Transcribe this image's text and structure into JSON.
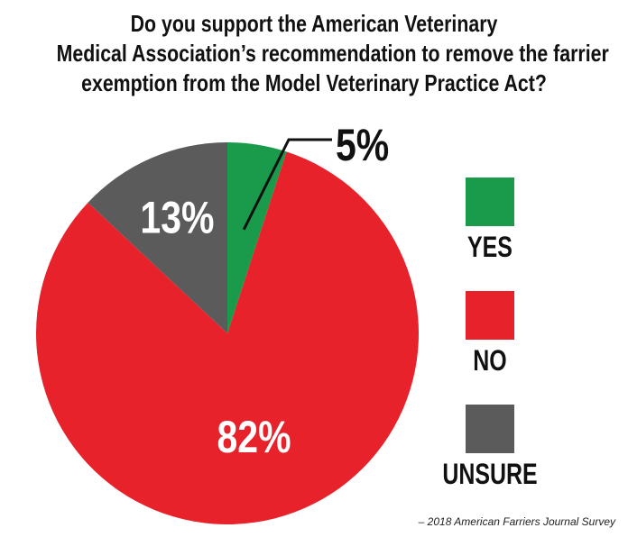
{
  "title_lines": [
    "Do you support the American Veterinary",
    "Medical Association’s recommendation to remove the farrier",
    "exemption from the Model Veterinary Practice Act?"
  ],
  "source": "– 2018 American Farriers Journal Survey",
  "chart_data": {
    "type": "pie",
    "title": "Do you support the American Veterinary Medical Association’s recommendation to remove the farrier exemption from the Model Veterinary Practice Act?",
    "categories": [
      "YES",
      "NO",
      "UNSURE"
    ],
    "values": [
      5,
      82,
      13
    ],
    "labels": [
      "5%",
      "82%",
      "13%"
    ],
    "colors": [
      "#1a9b4b",
      "#e8222b",
      "#5b5b5b"
    ],
    "legend_position": "right"
  }
}
